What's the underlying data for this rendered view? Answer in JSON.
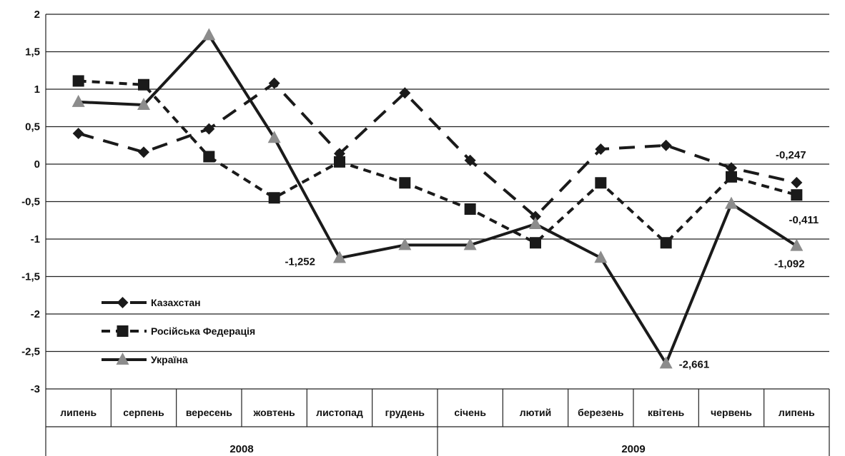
{
  "chart_data": {
    "type": "line",
    "categories": [
      "липень",
      "серпень",
      "вересень",
      "жовтень",
      "листопад",
      "грудень",
      "січень",
      "лютий",
      "березень",
      "квітень",
      "червень",
      "липень"
    ],
    "year_groups": [
      {
        "label": "2008",
        "span": 6
      },
      {
        "label": "2009",
        "span": 6
      }
    ],
    "ylim": [
      -3,
      2
    ],
    "yticks": [
      {
        "v": 2,
        "label": "2"
      },
      {
        "v": 1.5,
        "label": "1,5"
      },
      {
        "v": 1,
        "label": "1"
      },
      {
        "v": 0.5,
        "label": "0,5"
      },
      {
        "v": 0,
        "label": "0"
      },
      {
        "v": -0.5,
        "label": "-0,5"
      },
      {
        "v": -1,
        "label": "-1"
      },
      {
        "v": -1.5,
        "label": "-1,5"
      },
      {
        "v": -2,
        "label": "-2"
      },
      {
        "v": -2.5,
        "label": "-2,5"
      },
      {
        "v": -3,
        "label": "-3"
      }
    ],
    "grid": true,
    "legend_position": "bottom-left",
    "series": [
      {
        "name": "Казахстан",
        "line_style": "long-dash",
        "marker": "diamond",
        "color": "#1a1a1a",
        "values": [
          0.41,
          0.16,
          0.47,
          1.08,
          0.14,
          0.95,
          0.05,
          -0.7,
          0.2,
          0.25,
          -0.05,
          -0.247
        ]
      },
      {
        "name": "Російська Федерація",
        "line_style": "short-dash",
        "marker": "square",
        "color": "#1a1a1a",
        "values": [
          1.11,
          1.06,
          0.1,
          -0.45,
          0.03,
          -0.25,
          -0.6,
          -1.05,
          -0.25,
          -1.05,
          -0.17,
          -0.411
        ]
      },
      {
        "name": "Україна",
        "line_style": "solid",
        "marker": "triangle",
        "color": "#1a1a1a",
        "marker_color": "#8c8c8c",
        "values": [
          0.83,
          0.79,
          1.72,
          0.35,
          -1.252,
          -1.08,
          -1.08,
          -0.8,
          -1.25,
          -2.661,
          -0.53,
          -1.092
        ]
      }
    ],
    "annotations": [
      {
        "text": "-0,247",
        "series": 0,
        "index": 11
      },
      {
        "text": "-0,411",
        "series": 1,
        "index": 11
      },
      {
        "text": "-1,252",
        "series": 2,
        "index": 4
      },
      {
        "text": "-2,661",
        "series": 2,
        "index": 9
      },
      {
        "text": "-1,092",
        "series": 2,
        "index": 11
      }
    ]
  }
}
